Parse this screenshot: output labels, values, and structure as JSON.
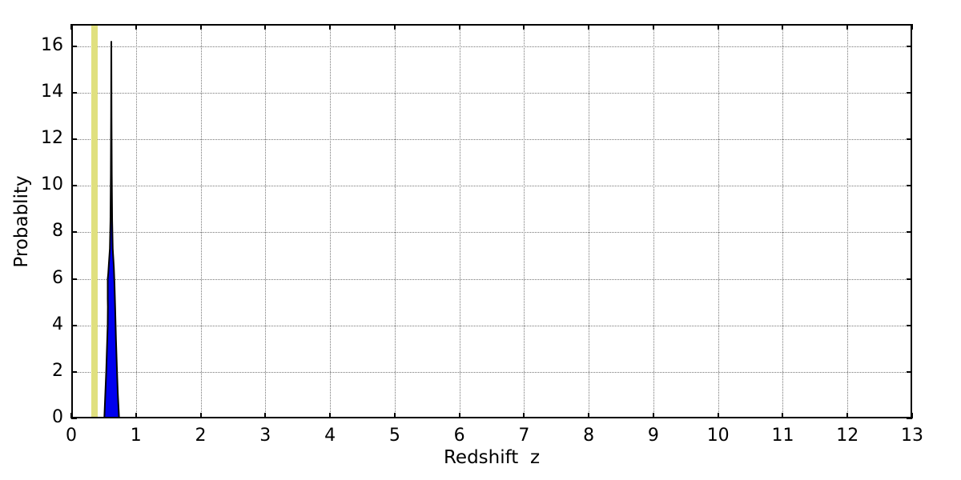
{
  "chart_data": {
    "type": "area",
    "title": "",
    "xlabel": "Redshift  z",
    "ylabel": "Probablity",
    "xlim": [
      0,
      13
    ],
    "ylim": [
      0,
      16.96
    ],
    "x_ticks": [
      0,
      1,
      2,
      3,
      4,
      5,
      6,
      7,
      8,
      9,
      10,
      11,
      12,
      13
    ],
    "x_tick_labels": [
      "0",
      "1",
      "2",
      "3",
      "4",
      "5",
      "6",
      "7",
      "8",
      "9",
      "10",
      "11",
      "12",
      "13"
    ],
    "y_ticks": [
      0,
      2,
      4,
      6,
      8,
      10,
      12,
      14,
      16
    ],
    "y_tick_labels": [
      "0",
      "2",
      "4",
      "6",
      "8",
      "10",
      "12",
      "14",
      "16"
    ],
    "grid": {
      "show": true,
      "linestyle": "dotted",
      "color": "#777777"
    },
    "frame_color": "#000000",
    "background": "#ffffff",
    "legend": null,
    "series": [
      {
        "name": "spectroscopic-redshift-band",
        "type": "vband",
        "x0": 0.3125,
        "x1": 0.4125,
        "color": "#e0e07f"
      },
      {
        "name": "photo-z-probability-pdf",
        "type": "filled-curve",
        "fill_color": "#0000ee",
        "edge_color": "#000000",
        "edge_width": 2,
        "peak": {
          "x": 0.619,
          "y": 16.2
        },
        "points": [
          [
            0.511,
            0
          ],
          [
            0.54,
            2.0
          ],
          [
            0.563,
            4.0
          ],
          [
            0.5655,
            4.8
          ],
          [
            0.5635,
            5.15
          ],
          [
            0.5635,
            6.0
          ],
          [
            0.571,
            6.2
          ],
          [
            0.58,
            6.6
          ],
          [
            0.597,
            7.3
          ],
          [
            0.606,
            8.5
          ],
          [
            0.612,
            10.5
          ],
          [
            0.616,
            13.0
          ],
          [
            0.619,
            16.2
          ],
          [
            0.622,
            13.0
          ],
          [
            0.626,
            10.5
          ],
          [
            0.632,
            8.5
          ],
          [
            0.641,
            7.3
          ],
          [
            0.658,
            6.5
          ],
          [
            0.668,
            5.8
          ],
          [
            0.678,
            4.8
          ],
          [
            0.691,
            3.4
          ],
          [
            0.705,
            2.2
          ],
          [
            0.719,
            1.1
          ],
          [
            0.739,
            0
          ]
        ]
      }
    ]
  }
}
